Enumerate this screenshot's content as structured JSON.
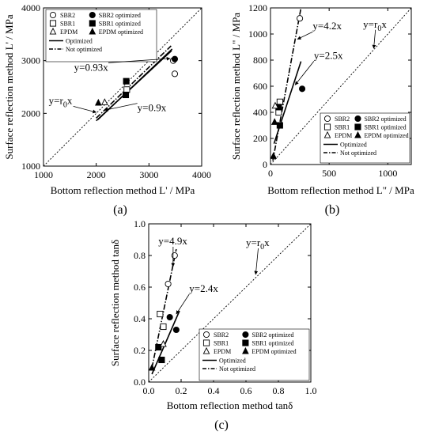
{
  "legend": {
    "marker_labels": [
      "SBR2",
      "SBR2 optimized",
      "SBR1",
      "SBR1 optimized",
      "EPDM",
      "EPDM optimized"
    ],
    "line_labels": [
      "Optimized",
      "Not optimized"
    ]
  },
  "chart_data": [
    {
      "type": "scatter",
      "panel_label": "(a)",
      "xlabel": "Bottom reflection method L' / MPa",
      "ylabel": "Surface reflection method  L' / MPa",
      "xlim": [
        1000,
        4000
      ],
      "ylim": [
        1000,
        4000
      ],
      "xticks": [
        "1000",
        "2000",
        "3000",
        "4000"
      ],
      "yticks": [
        "1000",
        "2000",
        "3000",
        "4000"
      ],
      "grid": false,
      "legend_position": "top-left",
      "series": [
        {
          "name": "SBR2",
          "marker": "circle-open",
          "points": [
            [
              3460,
              3000
            ],
            [
              3490,
              2750
            ]
          ]
        },
        {
          "name": "SBR2 optimized",
          "marker": "circle-filled",
          "points": [
            [
              3490,
              3030
            ]
          ]
        },
        {
          "name": "SBR1",
          "marker": "square-open",
          "points": [
            [
              2580,
              2450
            ]
          ]
        },
        {
          "name": "SBR1 optimized",
          "marker": "square-filled",
          "points": [
            [
              2570,
              2610
            ],
            [
              2560,
              2350
            ]
          ]
        },
        {
          "name": "EPDM",
          "marker": "triangle-open",
          "points": [
            [
              2160,
              2210
            ]
          ]
        },
        {
          "name": "EPDM optimized",
          "marker": "triangle-filled",
          "points": [
            [
              2040,
              2200
            ]
          ]
        }
      ],
      "fit_lines": [
        {
          "name": "Optimized",
          "style": "solid",
          "points": [
            [
              2030,
              1880
            ],
            [
              3440,
              3220
            ]
          ]
        },
        {
          "name": "Not optimized",
          "style": "dashdot",
          "points": [
            [
              2000,
              1910
            ],
            [
              3420,
              3280
            ]
          ]
        },
        {
          "name": "Optimized",
          "style": "solid",
          "points": [
            [
              2000,
              1860
            ],
            [
              3430,
              3190
            ]
          ]
        }
      ],
      "reference_line": {
        "style": "dotted",
        "points": [
          [
            1000,
            1000
          ],
          [
            4000,
            4000
          ]
        ]
      },
      "annotations": [
        {
          "text": "y=0.93x",
          "anchor": [
            1580,
            2810
          ],
          "arrow_to": [
            3400,
            3040
          ]
        },
        {
          "text": "y=0.9x",
          "anchor": [
            2780,
            2040
          ],
          "arrow_to": [
            2160,
            2060
          ]
        },
        {
          "text": "y=r",
          "sub": "0",
          "tail": "x",
          "anchor": [
            1100,
            2180
          ],
          "arrow_to": [
            2000,
            2020
          ]
        }
      ]
    },
    {
      "type": "scatter",
      "panel_label": "(b)",
      "xlabel": "Bottom reflection method L\" / MPa",
      "ylabel": "Surface reflection method  L\" / MPa",
      "xlim": [
        0,
        1200
      ],
      "ylim": [
        0,
        1200
      ],
      "xticks": [
        "0",
        "500",
        "1000"
      ],
      "yticks": [
        "0",
        "200",
        "400",
        "600",
        "800",
        "1000",
        "1200"
      ],
      "grid": false,
      "legend_position": "bottom-right",
      "series": [
        {
          "name": "SBR2",
          "marker": "circle-open",
          "points": [
            [
              250,
              1120
            ]
          ]
        },
        {
          "name": "SBR2 optimized",
          "marker": "circle-filled",
          "points": [
            [
              270,
              580
            ]
          ]
        },
        {
          "name": "SBR1",
          "marker": "square-open",
          "points": [
            [
              80,
              480
            ],
            [
              70,
              400
            ]
          ]
        },
        {
          "name": "SBR1 optimized",
          "marker": "square-filled",
          "points": [
            [
              80,
              300
            ],
            [
              70,
              440
            ]
          ]
        },
        {
          "name": "EPDM",
          "marker": "triangle-open",
          "points": [
            [
              40,
              450
            ]
          ]
        },
        {
          "name": "EPDM optimized",
          "marker": "triangle-filled",
          "points": [
            [
              35,
              325
            ],
            [
              25,
              65
            ]
          ]
        }
      ],
      "fit_lines": [
        {
          "name": "Optimized",
          "style": "solid",
          "points": [
            [
              30,
              160
            ],
            [
              260,
              790
            ]
          ]
        },
        {
          "name": "Not optimized",
          "style": "dashdot",
          "points": [
            [
              20,
              30
            ],
            [
              260,
              1200
            ]
          ]
        }
      ],
      "reference_line": {
        "style": "dotted",
        "points": [
          [
            0,
            0
          ],
          [
            1200,
            1200
          ]
        ]
      },
      "annotations": [
        {
          "text": "y=4.2x",
          "anchor": [
            360,
            1035
          ],
          "arrow_to": [
            230,
            960
          ]
        },
        {
          "text": "y=2.5x",
          "anchor": [
            370,
            810
          ],
          "arrow_to": [
            210,
            610
          ]
        },
        {
          "text": "y=r",
          "sub": "0",
          "tail": "x",
          "anchor": [
            790,
            1050
          ],
          "arrow_to": [
            880,
            890
          ]
        }
      ]
    },
    {
      "type": "scatter",
      "panel_label": "(c)",
      "xlabel": "Bottom reflection method tanδ",
      "ylabel": "Surface reflection method tanδ",
      "xlim": [
        0,
        1.0
      ],
      "ylim": [
        0,
        1.0
      ],
      "xticks": [
        "0.0",
        "0.2",
        "0.4",
        "0.6",
        "0.8",
        "1.0"
      ],
      "yticks": [
        "0.0",
        "0.2",
        "0.4",
        "0.6",
        "0.8",
        "1.0"
      ],
      "grid": false,
      "legend_position": "bottom-right",
      "series": [
        {
          "name": "SBR2",
          "marker": "circle-open",
          "points": [
            [
              0.16,
              0.8
            ],
            [
              0.12,
              0.62
            ]
          ]
        },
        {
          "name": "SBR2 optimized",
          "marker": "circle-filled",
          "points": [
            [
              0.17,
              0.33
            ],
            [
              0.13,
              0.41
            ]
          ]
        },
        {
          "name": "SBR1",
          "marker": "square-open",
          "points": [
            [
              0.07,
              0.43
            ],
            [
              0.09,
              0.35
            ]
          ]
        },
        {
          "name": "SBR1 optimized",
          "marker": "square-filled",
          "points": [
            [
              0.06,
              0.22
            ],
            [
              0.08,
              0.14
            ]
          ]
        },
        {
          "name": "EPDM",
          "marker": "triangle-open",
          "points": [
            [
              0.09,
              0.24
            ]
          ]
        },
        {
          "name": "EPDM optimized",
          "marker": "triangle-filled",
          "points": [
            [
              0.02,
              0.09
            ]
          ]
        }
      ],
      "fit_lines": [
        {
          "name": "Optimized",
          "style": "solid",
          "points": [
            [
              0.02,
              0.05
            ],
            [
              0.19,
              0.45
            ]
          ]
        },
        {
          "name": "Not optimized",
          "style": "dashdot",
          "points": [
            [
              0.02,
              0.09
            ],
            [
              0.17,
              0.84
            ]
          ]
        }
      ],
      "reference_line": {
        "style": "dotted",
        "points": [
          [
            0,
            0
          ],
          [
            1,
            1
          ]
        ]
      },
      "annotations": [
        {
          "text": "y=4.9x",
          "anchor": [
            0.06,
            0.87
          ],
          "arrow_to": [
            0.15,
            0.73
          ]
        },
        {
          "text": "y=2.4x",
          "anchor": [
            0.25,
            0.57
          ],
          "arrow_to": [
            0.17,
            0.43
          ]
        },
        {
          "text": "y=r",
          "sub": "0",
          "tail": "x",
          "anchor": [
            0.6,
            0.86
          ],
          "arrow_to": [
            0.66,
            0.68
          ]
        }
      ]
    }
  ]
}
